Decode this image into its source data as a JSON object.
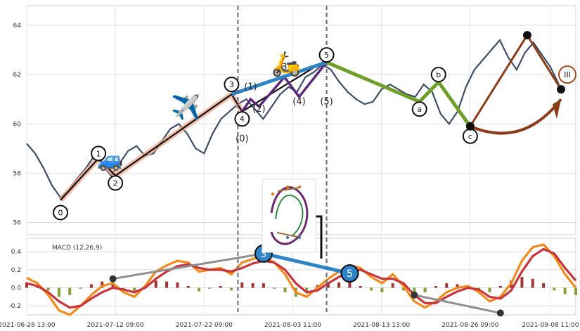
{
  "chart_data": [
    {
      "type": "line",
      "panel": "price",
      "title": "",
      "ylim": [
        55.5,
        64.8
      ],
      "yticks": [
        56,
        58,
        60,
        62,
        64
      ],
      "x_tick_labels": [
        "2021-06-28 13:00",
        "2021-07-12 09:00",
        "2021-07-22 09:00",
        "2021-08-03 11:00",
        "2021-08-13 13:00",
        "2021-08-26 09:00",
        "2021-09-08 11:00"
      ],
      "price_path": [
        [
          0,
          59.2
        ],
        [
          4,
          58.8
        ],
        [
          8,
          58.2
        ],
        [
          12,
          57.5
        ],
        [
          16,
          57.0
        ],
        [
          20,
          57.3
        ],
        [
          24,
          57.8
        ],
        [
          28,
          58.2
        ],
        [
          32,
          58.7
        ],
        [
          36,
          58.3
        ],
        [
          40,
          57.9
        ],
        [
          44,
          58.4
        ],
        [
          48,
          58.9
        ],
        [
          52,
          59.1
        ],
        [
          56,
          58.7
        ],
        [
          60,
          58.8
        ],
        [
          64,
          59.3
        ],
        [
          68,
          59.8
        ],
        [
          72,
          60.0
        ],
        [
          76,
          59.6
        ],
        [
          80,
          59.0
        ],
        [
          84,
          58.8
        ],
        [
          88,
          59.6
        ],
        [
          92,
          60.2
        ],
        [
          96,
          60.5
        ],
        [
          100,
          60.8
        ],
        [
          104,
          61.0
        ],
        [
          108,
          60.6
        ],
        [
          112,
          60.2
        ],
        [
          116,
          60.7
        ],
        [
          120,
          61.2
        ],
        [
          124,
          61.5
        ],
        [
          128,
          61.3
        ],
        [
          132,
          61.9
        ],
        [
          136,
          62.1
        ],
        [
          140,
          62.4
        ],
        [
          144,
          62.2
        ],
        [
          148,
          61.7
        ],
        [
          152,
          61.3
        ],
        [
          156,
          61.0
        ],
        [
          160,
          60.8
        ],
        [
          164,
          60.9
        ],
        [
          168,
          61.4
        ],
        [
          172,
          61.6
        ],
        [
          176,
          61.4
        ],
        [
          180,
          61.2
        ],
        [
          184,
          61.1
        ],
        [
          188,
          61.6
        ],
        [
          192,
          61.3
        ],
        [
          196,
          60.4
        ],
        [
          200,
          60.0
        ],
        [
          204,
          60.5
        ],
        [
          208,
          61.5
        ],
        [
          212,
          62.2
        ],
        [
          216,
          62.6
        ],
        [
          220,
          63.0
        ],
        [
          224,
          63.4
        ],
        [
          228,
          62.7
        ],
        [
          232,
          62.2
        ],
        [
          236,
          62.9
        ],
        [
          240,
          63.3
        ],
        [
          244,
          62.8
        ],
        [
          248,
          62.3
        ],
        [
          252,
          61.6
        ]
      ],
      "wave_labels": [
        {
          "text": "0",
          "x": 16,
          "y": 56.4
        },
        {
          "text": "1",
          "x": 34,
          "y": 58.8
        },
        {
          "text": "2",
          "x": 42,
          "y": 57.6
        },
        {
          "text": "3",
          "x": 97,
          "y": 61.6
        },
        {
          "text": "4",
          "x": 102,
          "y": 60.2
        },
        {
          "text": "5",
          "x": 142,
          "y": 62.8
        },
        {
          "text": "(1)",
          "x": 106,
          "y": 61.5
        },
        {
          "text": "(2)",
          "x": 110,
          "y": 60.6
        },
        {
          "text": "(3)",
          "x": 122,
          "y": 62.3
        },
        {
          "text": "(4)",
          "x": 129,
          "y": 60.9
        },
        {
          "text": "(5)",
          "x": 142,
          "y": 60.9
        },
        {
          "text": "(0)",
          "x": 102,
          "y": 59.4
        },
        {
          "text": "a",
          "x": 186,
          "y": 60.6
        },
        {
          "text": "b",
          "x": 195,
          "y": 62.0
        },
        {
          "text": "c",
          "x": 210,
          "y": 59.5
        },
        {
          "text": "III",
          "x": 256,
          "y": 62.0
        }
      ],
      "vlines_x": [
        100,
        142
      ],
      "impulse_line": [
        [
          16,
          56.9
        ],
        [
          34,
          58.6
        ],
        [
          42,
          57.9
        ],
        [
          97,
          61.2
        ],
        [
          102,
          60.5
        ],
        [
          142,
          62.6
        ]
      ],
      "subwave_line": [
        [
          102,
          60.5
        ],
        [
          106,
          61.0
        ],
        [
          110,
          60.7
        ],
        [
          122,
          61.9
        ],
        [
          129,
          61.1
        ],
        [
          142,
          62.5
        ]
      ],
      "correction_line": [
        [
          142,
          62.5
        ],
        [
          186,
          60.9
        ],
        [
          195,
          61.7
        ],
        [
          210,
          59.9
        ]
      ],
      "projection_line": [
        [
          210,
          59.9
        ],
        [
          237,
          63.6
        ],
        [
          253,
          61.4
        ]
      ]
    },
    {
      "type": "line",
      "panel": "macd",
      "title": "MACD (12,26,9)",
      "ylim": [
        -0.3,
        0.55
      ],
      "yticks": [
        -0.2,
        0.0,
        0.2,
        0.4
      ],
      "macd": [
        0.11,
        0.05,
        -0.08,
        -0.25,
        -0.3,
        -0.2,
        -0.08,
        0.02,
        0.05,
        -0.05,
        -0.1,
        0.02,
        0.18,
        0.25,
        0.3,
        0.28,
        0.18,
        0.2,
        0.22,
        0.15,
        0.28,
        0.32,
        0.35,
        0.28,
        0.15,
        -0.05,
        -0.1,
        0.0,
        0.1,
        0.18,
        0.25,
        0.22,
        0.12,
        0.05,
        0.15,
        0.02,
        -0.15,
        -0.22,
        -0.15,
        -0.05,
        0.0,
        0.02,
        -0.05,
        -0.15,
        -0.1,
        0.05,
        0.3,
        0.45,
        0.48,
        0.35,
        0.15,
        0.0
      ],
      "signal": [
        0.05,
        0.02,
        -0.05,
        -0.15,
        -0.22,
        -0.2,
        -0.12,
        -0.05,
        0.0,
        -0.02,
        -0.05,
        0.0,
        0.1,
        0.18,
        0.24,
        0.26,
        0.22,
        0.2,
        0.2,
        0.18,
        0.22,
        0.27,
        0.3,
        0.28,
        0.2,
        0.05,
        -0.05,
        -0.03,
        0.05,
        0.12,
        0.18,
        0.2,
        0.15,
        0.1,
        0.1,
        0.05,
        -0.08,
        -0.17,
        -0.17,
        -0.1,
        -0.04,
        0.0,
        -0.02,
        -0.1,
        -0.12,
        -0.03,
        0.18,
        0.35,
        0.43,
        0.38,
        0.22,
        0.08
      ],
      "divergence_top": {
        "label_a": "3",
        "label_b": "5",
        "y_a": 0.38,
        "y_b": 0.16
      },
      "divergence_left": [
        [
          0.1,
          0.1
        ],
        [
          0.38,
          0.38
        ]
      ],
      "divergence_right": [
        [
          -0.08,
          -0.08
        ],
        [
          -0.28,
          -0.28
        ]
      ]
    }
  ],
  "emoji": {
    "car": "🚙",
    "plane": "✈️",
    "scooter": "🛵"
  }
}
